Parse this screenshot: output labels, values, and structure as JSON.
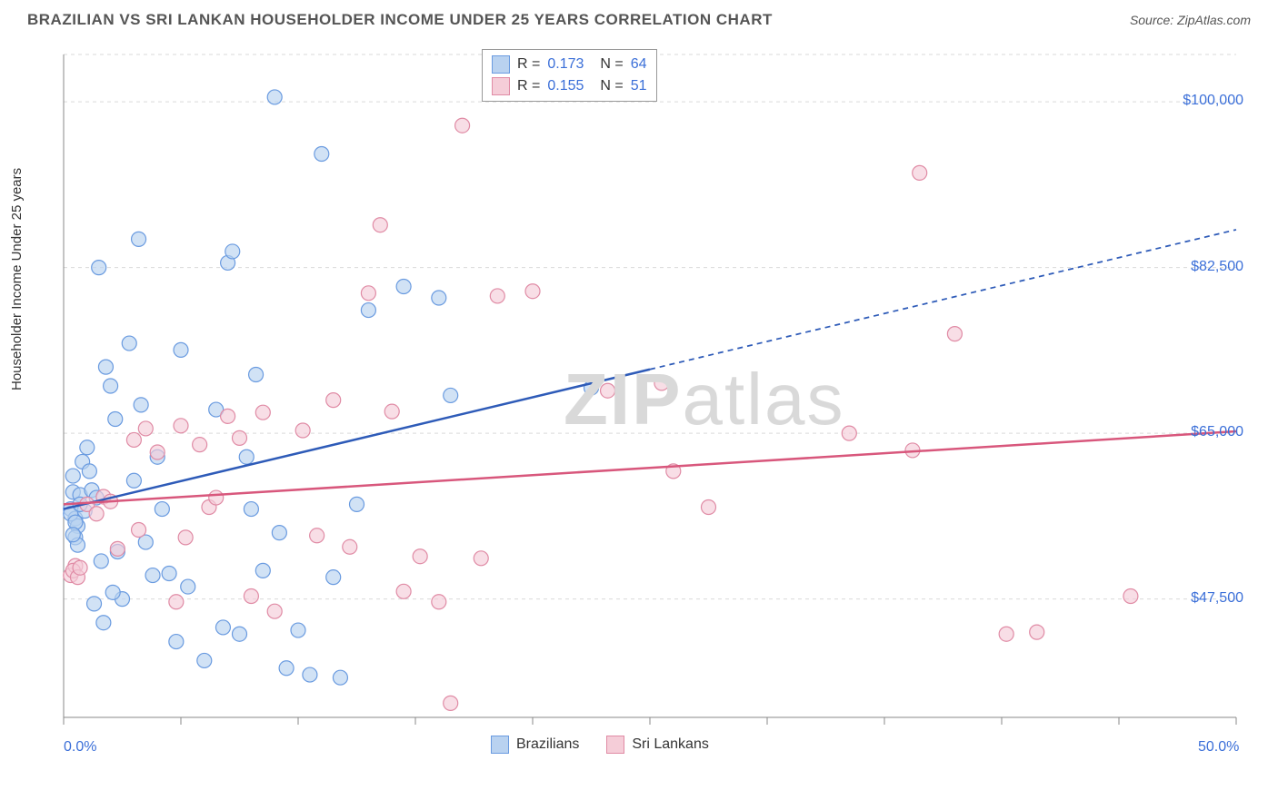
{
  "header": {
    "title": "BRAZILIAN VS SRI LANKAN HOUSEHOLDER INCOME UNDER 25 YEARS CORRELATION CHART",
    "source_label": "Source:",
    "source_value": "ZipAtlas.com"
  },
  "chart": {
    "type": "scatter",
    "ylabel": "Householder Income Under 25 years",
    "watermark": "ZIPatlas",
    "xlim": [
      0,
      50
    ],
    "ylim": [
      35000,
      105000
    ],
    "xticks": [
      0,
      5,
      10,
      15,
      20,
      25,
      30,
      35,
      40,
      45,
      50
    ],
    "xtick_labels": {
      "0": "0.0%",
      "50": "50.0%"
    },
    "yticks": [
      47500,
      65000,
      82500,
      100000
    ],
    "ytick_labels": {
      "47500": "$47,500",
      "65000": "$65,000",
      "82500": "$82,500",
      "100000": "$100,000"
    },
    "grid_color": "#d9d9d9",
    "axis_color": "#888",
    "background_color": "#ffffff",
    "label_color": "#3b6fd8",
    "series": [
      {
        "name": "Brazilians",
        "color_fill": "#b9d2f0",
        "color_stroke": "#6a9be0",
        "r_value": "0.173",
        "n_value": "64",
        "trend": {
          "x1": 0,
          "y1": 57000,
          "x2": 50,
          "y2": 86500,
          "solid_until_x": 25,
          "color": "#2e5bb8",
          "width": 2.5
        },
        "points": [
          [
            0.3,
            57000
          ],
          [
            0.4,
            58800
          ],
          [
            0.5,
            56000
          ],
          [
            0.6,
            55200
          ],
          [
            0.7,
            58500
          ],
          [
            0.5,
            54000
          ],
          [
            0.4,
            60500
          ],
          [
            0.8,
            62000
          ],
          [
            1.0,
            63500
          ],
          [
            1.2,
            59000
          ],
          [
            0.6,
            53200
          ],
          [
            0.9,
            56800
          ],
          [
            0.3,
            56500
          ],
          [
            0.5,
            55600
          ],
          [
            0.7,
            57500
          ],
          [
            1.1,
            61000
          ],
          [
            1.4,
            58200
          ],
          [
            0.4,
            54300
          ],
          [
            1.5,
            82500
          ],
          [
            1.8,
            72000
          ],
          [
            2.2,
            66500
          ],
          [
            2.0,
            70000
          ],
          [
            1.7,
            45000
          ],
          [
            2.5,
            47500
          ],
          [
            3.0,
            60000
          ],
          [
            2.8,
            74500
          ],
          [
            3.3,
            68000
          ],
          [
            3.5,
            53500
          ],
          [
            4.0,
            62500
          ],
          [
            4.2,
            57000
          ],
          [
            4.5,
            50200
          ],
          [
            5.0,
            73800
          ],
          [
            3.2,
            85500
          ],
          [
            6.0,
            41000
          ],
          [
            6.5,
            67500
          ],
          [
            7.0,
            83000
          ],
          [
            7.2,
            84200
          ],
          [
            7.5,
            43800
          ],
          [
            8.0,
            57000
          ],
          [
            8.5,
            50500
          ],
          [
            9.0,
            100500
          ],
          [
            9.2,
            54500
          ],
          [
            10.0,
            44200
          ],
          [
            10.5,
            39500
          ],
          [
            11.0,
            94500
          ],
          [
            11.5,
            49800
          ],
          [
            11.8,
            39200
          ],
          [
            12.5,
            57500
          ],
          [
            8.2,
            71200
          ],
          [
            13.0,
            78000
          ],
          [
            6.8,
            44500
          ],
          [
            4.8,
            43000
          ],
          [
            7.8,
            62500
          ],
          [
            1.6,
            51500
          ],
          [
            2.3,
            52500
          ],
          [
            5.3,
            48800
          ],
          [
            16.0,
            79300
          ],
          [
            16.5,
            69000
          ],
          [
            9.5,
            40200
          ],
          [
            3.8,
            50000
          ],
          [
            2.1,
            48200
          ],
          [
            14.5,
            80500
          ],
          [
            22.5,
            69800
          ],
          [
            1.3,
            47000
          ]
        ]
      },
      {
        "name": "Sri Lankans",
        "color_fill": "#f5cdd8",
        "color_stroke": "#e08ba5",
        "r_value": "0.155",
        "n_value": "51",
        "trend": {
          "x1": 0,
          "y1": 57500,
          "x2": 50,
          "y2": 65200,
          "solid_until_x": 50,
          "color": "#d8577c",
          "width": 2.5
        },
        "points": [
          [
            0.3,
            50000
          ],
          [
            0.5,
            51000
          ],
          [
            0.4,
            50500
          ],
          [
            0.6,
            49800
          ],
          [
            0.7,
            50800
          ],
          [
            1.0,
            57500
          ],
          [
            1.4,
            56500
          ],
          [
            1.7,
            58300
          ],
          [
            2.0,
            57800
          ],
          [
            2.3,
            52800
          ],
          [
            3.0,
            64300
          ],
          [
            3.2,
            54800
          ],
          [
            3.5,
            65500
          ],
          [
            4.0,
            63000
          ],
          [
            4.8,
            47200
          ],
          [
            5.0,
            65800
          ],
          [
            5.2,
            54000
          ],
          [
            5.8,
            63800
          ],
          [
            6.2,
            57200
          ],
          [
            6.5,
            58200
          ],
          [
            7.0,
            66800
          ],
          [
            7.5,
            64500
          ],
          [
            8.0,
            47800
          ],
          [
            8.5,
            67200
          ],
          [
            9.0,
            46200
          ],
          [
            10.2,
            65300
          ],
          [
            10.8,
            54200
          ],
          [
            11.5,
            68500
          ],
          [
            12.2,
            53000
          ],
          [
            13.0,
            79800
          ],
          [
            13.5,
            87000
          ],
          [
            14.0,
            67300
          ],
          [
            14.5,
            48300
          ],
          [
            15.2,
            52000
          ],
          [
            16.0,
            47200
          ],
          [
            16.5,
            36500
          ],
          [
            17.0,
            97500
          ],
          [
            17.8,
            51800
          ],
          [
            18.5,
            79500
          ],
          [
            20.0,
            80000
          ],
          [
            23.2,
            69500
          ],
          [
            25.5,
            70300
          ],
          [
            26.0,
            61000
          ],
          [
            27.5,
            57200
          ],
          [
            33.5,
            65000
          ],
          [
            36.5,
            92500
          ],
          [
            38.0,
            75500
          ],
          [
            40.2,
            43800
          ],
          [
            41.5,
            44000
          ],
          [
            45.5,
            47800
          ],
          [
            36.2,
            63200
          ]
        ]
      }
    ],
    "legend_bottom": [
      {
        "label": "Brazilians",
        "fill": "#b9d2f0",
        "stroke": "#6a9be0"
      },
      {
        "label": "Sri Lankans",
        "fill": "#f5cdd8",
        "stroke": "#e08ba5"
      }
    ]
  }
}
